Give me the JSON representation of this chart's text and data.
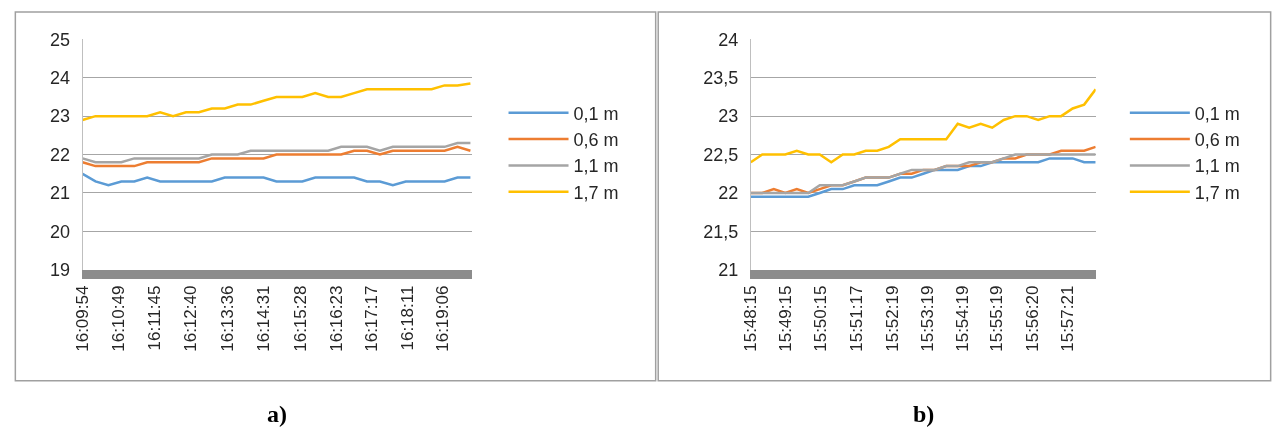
{
  "chart_data": [
    {
      "type": "line",
      "title": "a)",
      "x": [
        16.165,
        16.1705,
        16.176,
        16.1815,
        16.187,
        16.1925,
        16.198,
        16.2035,
        16.209,
        16.2145,
        16.22,
        16.2255,
        16.231,
        16.2365,
        16.242,
        16.2475,
        16.253,
        16.2585,
        16.264,
        16.2695,
        16.275,
        16.2805,
        16.286,
        16.2915,
        16.297,
        16.3025,
        16.308,
        16.3135,
        16.319,
        16.3245,
        16.33
      ],
      "xlim": [
        16.165,
        16.3306
      ],
      "xticks": [
        {
          "value": 16.165,
          "label": "16:09:54"
        },
        {
          "value": 16.1803,
          "label": "16:10:49"
        },
        {
          "value": 16.1958,
          "label": "16:11:45"
        },
        {
          "value": 16.2111,
          "label": "16:12:40"
        },
        {
          "value": 16.2267,
          "label": "16:13:36"
        },
        {
          "value": 16.2419,
          "label": "16:14:31"
        },
        {
          "value": 16.2578,
          "label": "16:15:28"
        },
        {
          "value": 16.2731,
          "label": "16:16:23"
        },
        {
          "value": 16.2881,
          "label": "16:17:17"
        },
        {
          "value": 16.3031,
          "label": "16:18:11"
        },
        {
          "value": 16.3183,
          "label": "16:19:06"
        }
      ],
      "ylim": [
        19,
        25
      ],
      "yticks": [
        19,
        20,
        21,
        22,
        23,
        24,
        25
      ],
      "grid": "y",
      "legend": "right",
      "marker": "none",
      "line_style": "solid",
      "series": [
        {
          "name": "0,1 m",
          "color": "#5b9bd5",
          "values": [
            21.5,
            21.3,
            21.2,
            21.3,
            21.3,
            21.4,
            21.3,
            21.3,
            21.3,
            21.3,
            21.3,
            21.4,
            21.4,
            21.4,
            21.4,
            21.3,
            21.3,
            21.3,
            21.4,
            21.4,
            21.4,
            21.4,
            21.3,
            21.3,
            21.2,
            21.3,
            21.3,
            21.3,
            21.3,
            21.4,
            21.4
          ]
        },
        {
          "name": "0,6 m",
          "color": "#ed7d31",
          "values": [
            21.8,
            21.7,
            21.7,
            21.7,
            21.7,
            21.8,
            21.8,
            21.8,
            21.8,
            21.8,
            21.9,
            21.9,
            21.9,
            21.9,
            21.9,
            22.0,
            22.0,
            22.0,
            22.0,
            22.0,
            22.0,
            22.1,
            22.1,
            22.0,
            22.1,
            22.1,
            22.1,
            22.1,
            22.1,
            22.2,
            22.1
          ]
        },
        {
          "name": "1,1 m",
          "color": "#a5a5a5",
          "values": [
            21.9,
            21.8,
            21.8,
            21.8,
            21.9,
            21.9,
            21.9,
            21.9,
            21.9,
            21.9,
            22.0,
            22.0,
            22.0,
            22.1,
            22.1,
            22.1,
            22.1,
            22.1,
            22.1,
            22.1,
            22.2,
            22.2,
            22.2,
            22.1,
            22.2,
            22.2,
            22.2,
            22.2,
            22.2,
            22.3,
            22.3
          ]
        },
        {
          "name": "1,7 m",
          "color": "#ffc000",
          "values": [
            22.9,
            23.0,
            23.0,
            23.0,
            23.0,
            23.0,
            23.1,
            23.0,
            23.1,
            23.1,
            23.2,
            23.2,
            23.3,
            23.3,
            23.4,
            23.5,
            23.5,
            23.5,
            23.6,
            23.5,
            23.5,
            23.6,
            23.7,
            23.7,
            23.7,
            23.7,
            23.7,
            23.7,
            23.8,
            23.8,
            23.85
          ]
        }
      ]
    },
    {
      "type": "line",
      "title": "b)",
      "x": [
        15.8042,
        15.8097,
        15.8152,
        15.8207,
        15.8262,
        15.8317,
        15.8372,
        15.8427,
        15.8482,
        15.8537,
        15.8592,
        15.8647,
        15.8702,
        15.8757,
        15.8812,
        15.8867,
        15.8922,
        15.8977,
        15.9032,
        15.9087,
        15.9142,
        15.9197,
        15.9252,
        15.9307,
        15.9362,
        15.9417,
        15.9472,
        15.9527,
        15.9582,
        15.9637,
        15.9692
      ],
      "xlim": [
        15.8042,
        15.9692
      ],
      "xticks": [
        {
          "value": 15.8042,
          "label": "15:48:15"
        },
        {
          "value": 15.8208,
          "label": "15:49:15"
        },
        {
          "value": 15.8375,
          "label": "15:50:15"
        },
        {
          "value": 15.8547,
          "label": "15:51:17"
        },
        {
          "value": 15.8719,
          "label": "15:52:19"
        },
        {
          "value": 15.8886,
          "label": "15:53:19"
        },
        {
          "value": 15.9053,
          "label": "15:54:19"
        },
        {
          "value": 15.9219,
          "label": "15:55:19"
        },
        {
          "value": 15.9389,
          "label": "15:56:20"
        },
        {
          "value": 15.9558,
          "label": "15:57:21"
        }
      ],
      "ylim": [
        21,
        24
      ],
      "yticks": [
        {
          "value": 21,
          "label": "21"
        },
        {
          "value": 21.5,
          "label": "21,5"
        },
        {
          "value": 22,
          "label": "22"
        },
        {
          "value": 22.5,
          "label": "22,5"
        },
        {
          "value": 23,
          "label": "23"
        },
        {
          "value": 23.5,
          "label": "23,5"
        },
        {
          "value": 24,
          "label": "24"
        }
      ],
      "grid": "y",
      "legend": "right",
      "marker": "none",
      "line_style": "solid",
      "series": [
        {
          "name": "0,1 m",
          "color": "#5b9bd5",
          "values": [
            21.95,
            21.95,
            21.95,
            21.95,
            21.95,
            21.95,
            22.0,
            22.05,
            22.05,
            22.1,
            22.1,
            22.1,
            22.15,
            22.2,
            22.2,
            22.25,
            22.3,
            22.3,
            22.3,
            22.35,
            22.35,
            22.4,
            22.4,
            22.4,
            22.4,
            22.4,
            22.45,
            22.45,
            22.45,
            22.4,
            22.4
          ]
        },
        {
          "name": "0,6 m",
          "color": "#ed7d31",
          "values": [
            22.0,
            22.0,
            22.05,
            22.0,
            22.05,
            22.0,
            22.05,
            22.1,
            22.1,
            22.15,
            22.2,
            22.2,
            22.2,
            22.25,
            22.25,
            22.3,
            22.3,
            22.35,
            22.35,
            22.35,
            22.4,
            22.4,
            22.45,
            22.45,
            22.5,
            22.5,
            22.5,
            22.55,
            22.55,
            22.55,
            22.6
          ]
        },
        {
          "name": "1,1 m",
          "color": "#a5a5a5",
          "values": [
            22.0,
            22.0,
            22.0,
            22.0,
            22.0,
            22.0,
            22.1,
            22.1,
            22.1,
            22.15,
            22.2,
            22.2,
            22.2,
            22.25,
            22.3,
            22.3,
            22.3,
            22.35,
            22.35,
            22.4,
            22.4,
            22.4,
            22.45,
            22.5,
            22.5,
            22.5,
            22.5,
            22.5,
            22.5,
            22.5,
            22.5
          ]
        },
        {
          "name": "1,7 m",
          "color": "#ffc000",
          "values": [
            22.4,
            22.5,
            22.5,
            22.5,
            22.55,
            22.5,
            22.5,
            22.4,
            22.5,
            22.5,
            22.55,
            22.55,
            22.6,
            22.7,
            22.7,
            22.7,
            22.7,
            22.7,
            22.9,
            22.85,
            22.9,
            22.85,
            22.95,
            23.0,
            23.0,
            22.95,
            23.0,
            23.0,
            23.1,
            23.15,
            23.35
          ]
        }
      ]
    }
  ]
}
